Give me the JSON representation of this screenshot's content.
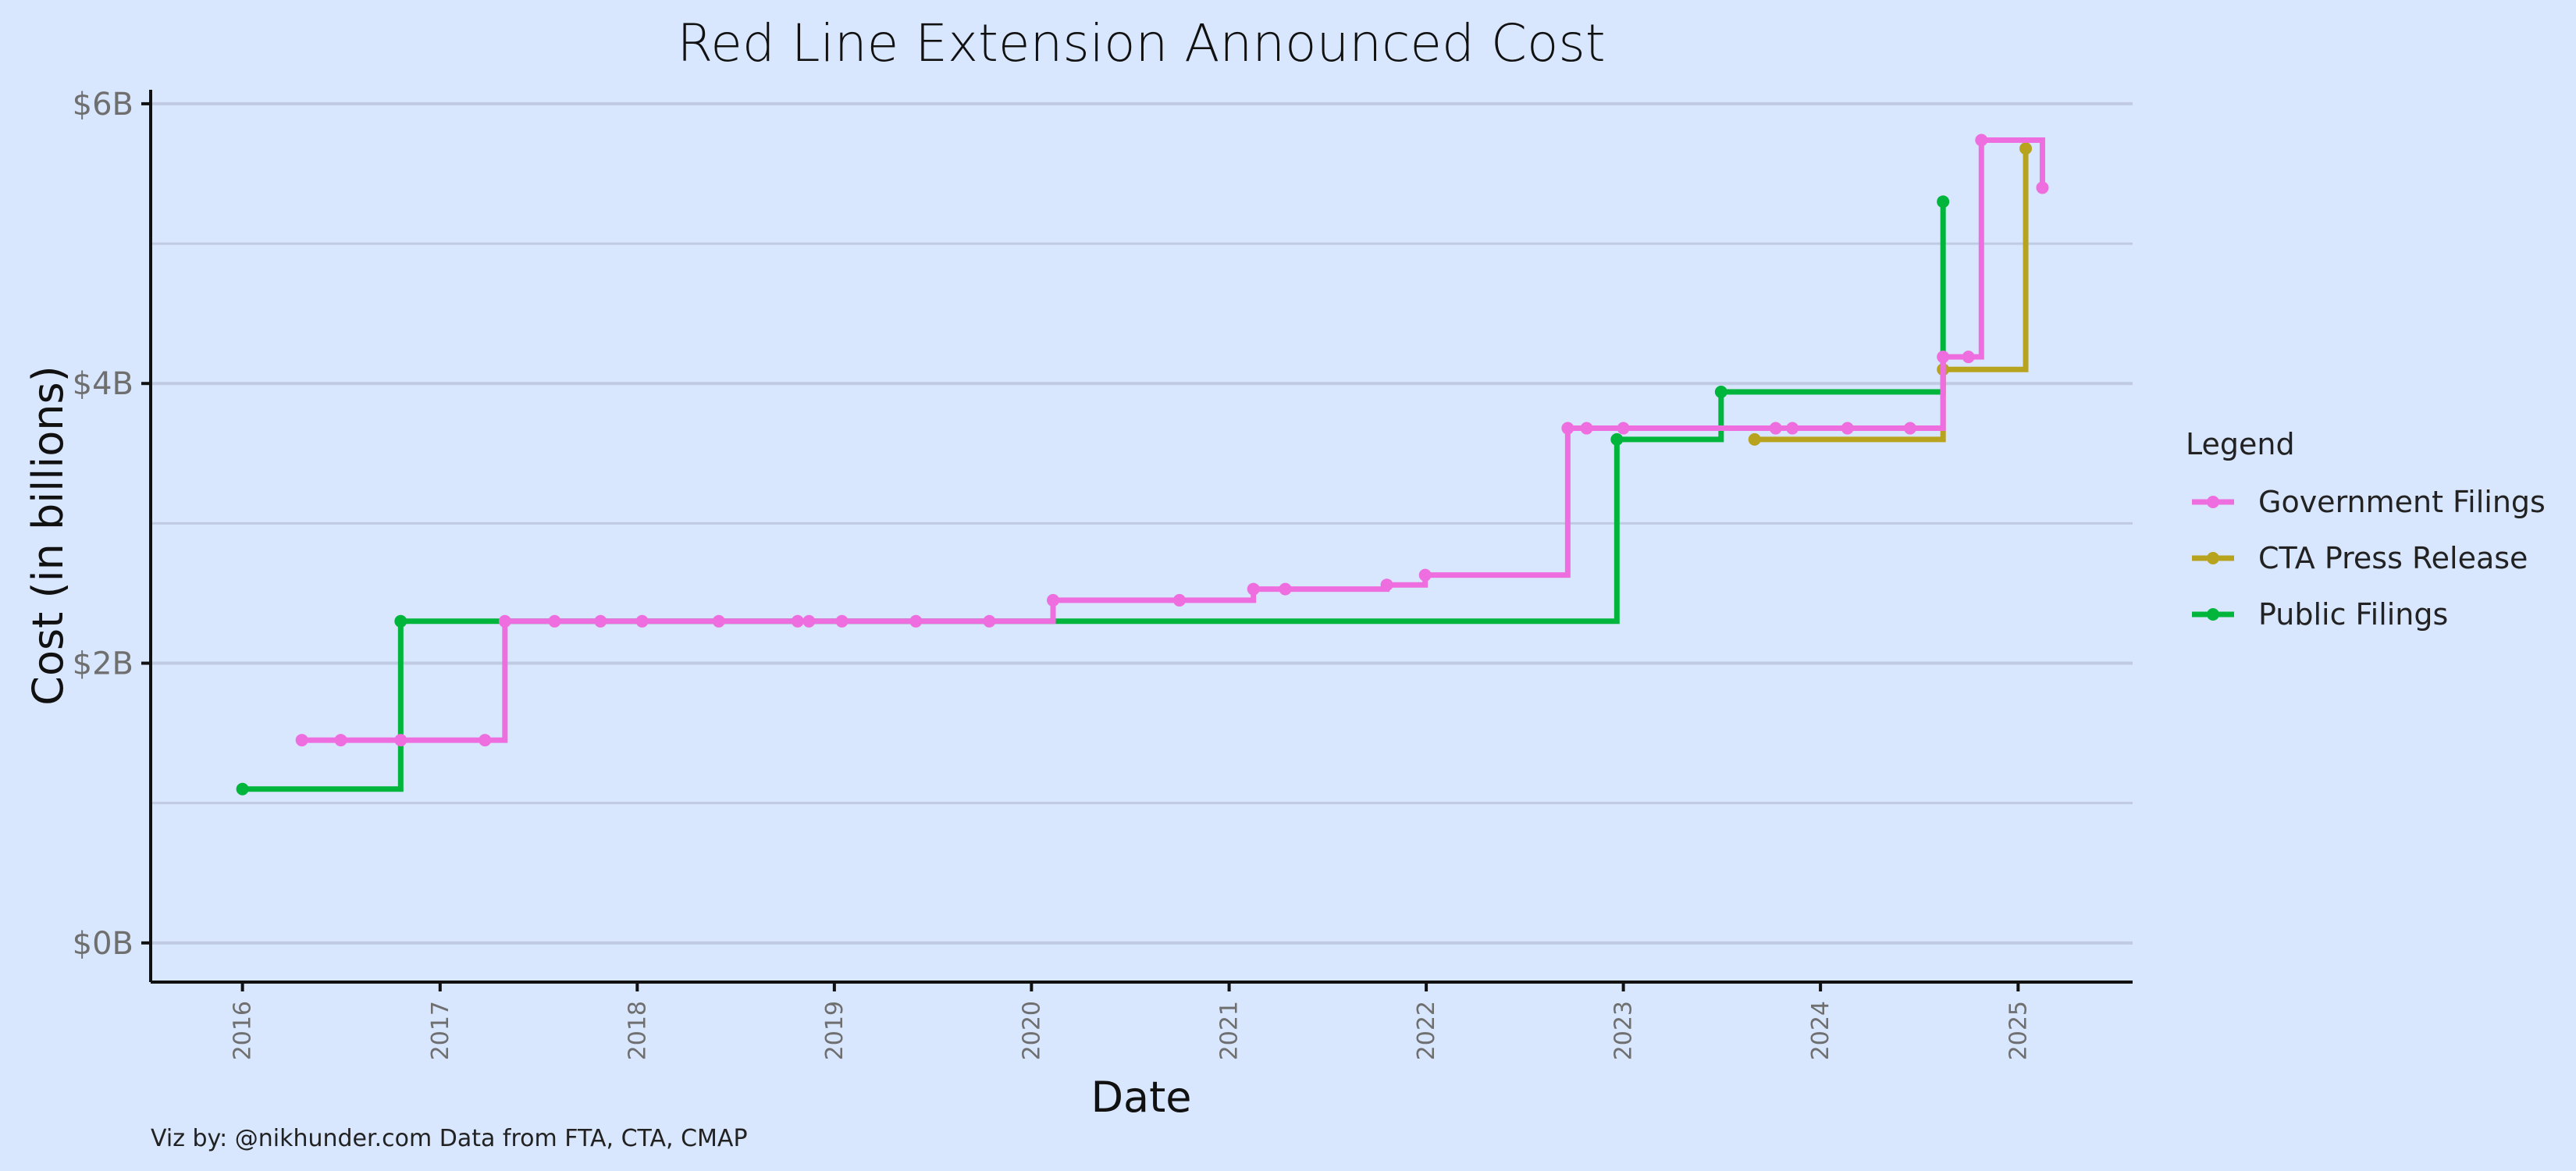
{
  "chart_data": {
    "type": "line",
    "step": true,
    "title": "Red Line Extension Announced Cost",
    "xlabel": "Date",
    "ylabel": "Cost (in billions)",
    "x_ticks": [
      "2016",
      "2017",
      "2018",
      "2019",
      "2020",
      "2021",
      "2022",
      "2023",
      "2024",
      "2025"
    ],
    "y_ticks": [
      "$0B",
      "$2B",
      "$4B",
      "$6B"
    ],
    "y_tick_values": [
      0,
      2,
      4,
      6
    ],
    "xlim": [
      "2015-07-15",
      "2025-08-01"
    ],
    "ylim": [
      -0.28,
      6.1
    ],
    "grid": {
      "major_y": true,
      "minor_y": true,
      "x": false
    },
    "legend": {
      "title": "Legend",
      "position": "right"
    },
    "caption": "Viz by: @nikhunder.com Data from FTA, CTA, CMAP",
    "series": [
      {
        "name": "Government Filings",
        "color": "#ee6ee0",
        "points": [
          [
            "2016-04-20",
            1.45
          ],
          [
            "2016-07-01",
            1.45
          ],
          [
            "2016-10-20",
            1.45
          ],
          [
            "2017-03-25",
            1.45
          ],
          [
            "2017-05-01",
            2.3
          ],
          [
            "2017-08-01",
            2.3
          ],
          [
            "2017-10-25",
            2.3
          ],
          [
            "2018-01-10",
            2.3
          ],
          [
            "2018-06-01",
            2.3
          ],
          [
            "2018-10-25",
            2.3
          ],
          [
            "2018-11-15",
            2.3
          ],
          [
            "2019-01-15",
            2.3
          ],
          [
            "2019-06-01",
            2.3
          ],
          [
            "2019-10-15",
            2.3
          ],
          [
            "2020-02-10",
            2.45
          ],
          [
            "2020-10-01",
            2.45
          ],
          [
            "2021-02-15",
            2.53
          ],
          [
            "2021-04-15",
            2.53
          ],
          [
            "2021-10-20",
            2.56
          ],
          [
            "2021-12-30",
            2.63
          ],
          [
            "2022-09-20",
            3.68
          ],
          [
            "2022-10-25",
            3.68
          ],
          [
            "2023-01-01",
            3.68
          ],
          [
            "2023-10-10",
            3.68
          ],
          [
            "2023-11-10",
            3.68
          ],
          [
            "2024-02-20",
            3.68
          ],
          [
            "2024-06-15",
            3.68
          ],
          [
            "2024-08-15",
            4.19
          ],
          [
            "2024-10-01",
            4.19
          ],
          [
            "2024-10-25",
            5.74
          ],
          [
            "2025-02-15",
            5.4
          ]
        ]
      },
      {
        "name": "CTA Press Release",
        "color": "#b8a31e",
        "points": [
          [
            "2023-09-01",
            3.6
          ],
          [
            "2024-08-15",
            4.1
          ],
          [
            "2025-01-15",
            5.68
          ]
        ]
      },
      {
        "name": "Public Filings",
        "color": "#00b53c",
        "points": [
          [
            "2016-01-01",
            1.1
          ],
          [
            "2016-10-20",
            2.3
          ],
          [
            "2022-12-20",
            3.6
          ],
          [
            "2023-07-01",
            3.94
          ],
          [
            "2024-08-15",
            5.3
          ]
        ]
      }
    ]
  }
}
